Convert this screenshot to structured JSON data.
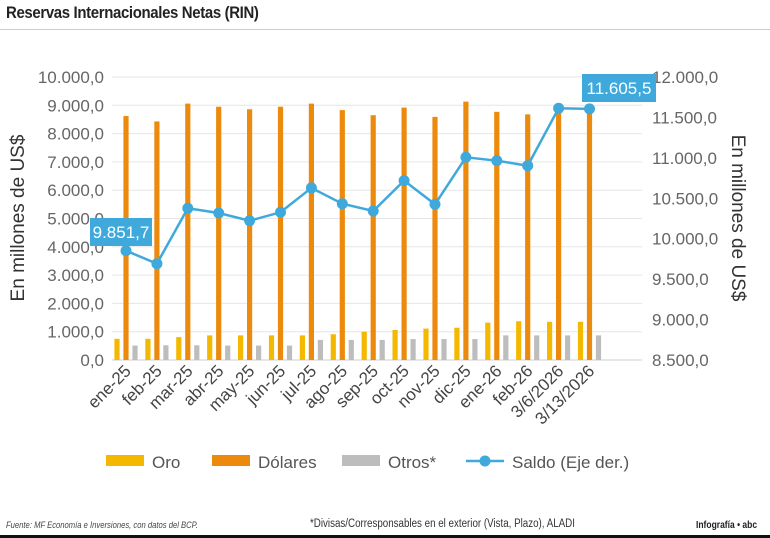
{
  "chart_data": {
    "type": "bar+line",
    "title": "Reservas Internacionales Netas (RIN)",
    "ylabel": "En millones de US$",
    "ylabel_right": "En millones de US$",
    "ylim": [
      0,
      10000
    ],
    "ylim_right": [
      8500,
      12000
    ],
    "yticks": [
      "0,0",
      "1.000,0",
      "2.000,0",
      "3.000,0",
      "4.000,0",
      "5.000,0",
      "6.000,0",
      "7.000,0",
      "8.000,0",
      "9.000,0",
      "10.000,0"
    ],
    "yticks_right": [
      "8.500,0",
      "9.000,0",
      "9.500,0",
      "10.000,0",
      "10.500,0",
      "11.000,0",
      "11.500,0",
      "12.000,0"
    ],
    "grid": true,
    "legend_position": "bottom",
    "categories": [
      "ene-25",
      "feb-25",
      "mar-25",
      "abr-25",
      "may-25",
      "jun-25",
      "jul-25",
      "ago-25",
      "sep-25",
      "oct-25",
      "nov-25",
      "dic-25",
      "ene-26",
      "feb-26",
      "3/6/2026",
      "3/13/2026"
    ],
    "series": [
      {
        "name": "Oro",
        "type": "bar",
        "axis": "left",
        "color": "#f5b800",
        "values": [
          750,
          750,
          810,
          870,
          870,
          870,
          870,
          910,
          1000,
          1060,
          1110,
          1140,
          1320,
          1370,
          1350,
          1350
        ]
      },
      {
        "name": "Dólares",
        "type": "bar",
        "axis": "left",
        "color": "#ec8a0d",
        "values": [
          8620,
          8430,
          9060,
          8950,
          8860,
          8950,
          9060,
          8830,
          8650,
          8920,
          8590,
          9130,
          8770,
          8680,
          9000,
          8980
        ]
      },
      {
        "name": "Otros*",
        "type": "bar",
        "axis": "left",
        "color": "#bdbdbd",
        "values": [
          510,
          520,
          520,
          510,
          510,
          510,
          710,
          710,
          710,
          740,
          740,
          740,
          870,
          870,
          870,
          870
        ]
      },
      {
        "name": "Saldo (Eje der.)",
        "type": "line",
        "axis": "right",
        "color": "#3fa9dc",
        "values": [
          9851.7,
          9691,
          10377,
          10318,
          10223,
          10327,
          10628,
          10433,
          10343,
          10718,
          10426,
          11007,
          10965,
          10903,
          11613,
          11605.5
        ]
      }
    ],
    "annotations": [
      {
        "category": "ene-25",
        "text": "9.851,7"
      },
      {
        "category": "3/13/2026",
        "text": "11.605,5"
      }
    ]
  },
  "footer": {
    "source": "Fuente: MF Economía e Inversiones, con datos del BCP.",
    "note": "*Divisas/Corresponsables en el exterior (Vista, Plazo), ALADI",
    "credit": "Infografía • abc"
  }
}
